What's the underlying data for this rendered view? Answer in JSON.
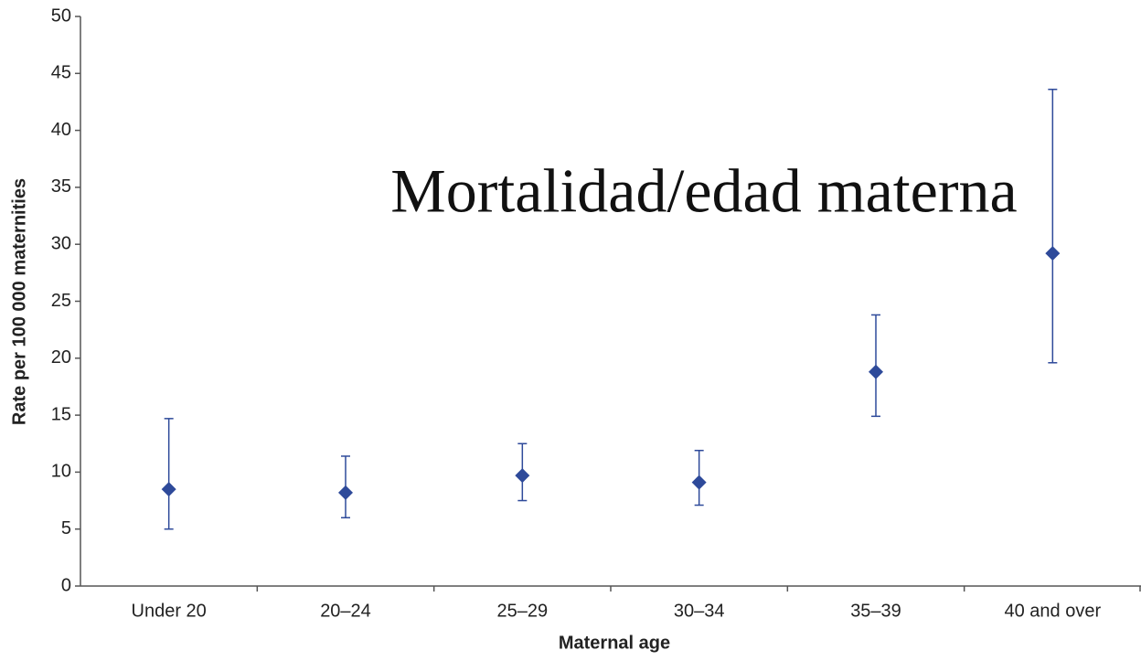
{
  "chart_data": {
    "type": "errorbar",
    "annotation": "Mortalidad/edad materna",
    "x_label": "Maternal age",
    "y_label": "Rate per 100 000 maternities",
    "categories": [
      "Under 20",
      "20–24",
      "25–29",
      "30–34",
      "35–39",
      "40 and over"
    ],
    "values": [
      8.5,
      8.2,
      9.7,
      9.1,
      18.8,
      29.2
    ],
    "lower": [
      5,
      6,
      7.5,
      7.1,
      14.9,
      19.6
    ],
    "upper": [
      14.7,
      11.4,
      12.5,
      11.9,
      23.8,
      43.6
    ],
    "color": "#2e4a9a",
    "ylim": [
      0,
      50
    ],
    "yticks": [
      0,
      5,
      10,
      15,
      20,
      25,
      30,
      35,
      40,
      45,
      50
    ]
  }
}
